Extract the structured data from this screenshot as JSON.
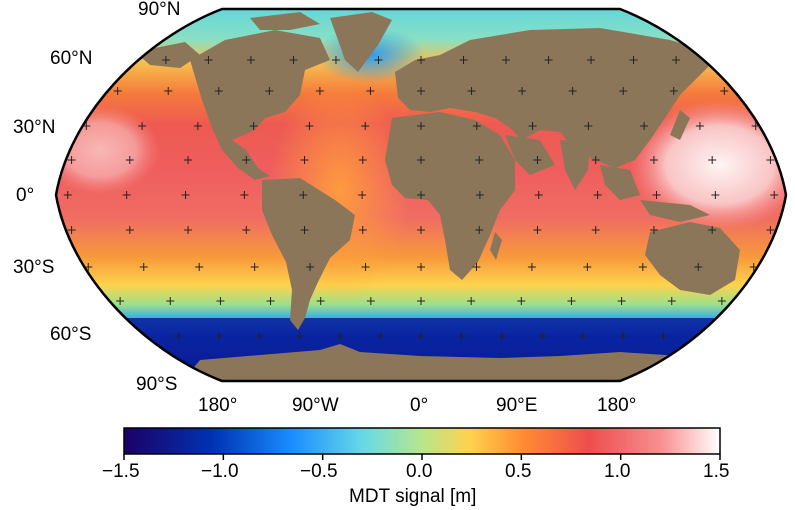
{
  "colors": {
    "land": "#8c7659",
    "background": "#ffffff",
    "outline": "#000000",
    "grid_cross": "#222222"
  },
  "map": {
    "projection": "Robinson",
    "graticule": "plus-markers every 15°",
    "lat_labels": [
      "90°N",
      "60°N",
      "30°N",
      "0°",
      "30°S",
      "60°S",
      "90°S"
    ],
    "lon_labels": [
      "180°",
      "90°W",
      "0°",
      "90°E",
      "180°"
    ]
  },
  "colorbar": {
    "title": "MDT signal [m]",
    "ticks": [
      "−1.5",
      "−1.0",
      "−0.5",
      "0.0",
      "0.5",
      "1.0",
      "1.5"
    ],
    "range": [
      -1.5,
      1.5
    ],
    "colormap": [
      "#1d0066",
      "#0033b3",
      "#1a8cff",
      "#66d9e6",
      "#b8e68c",
      "#ffd24d",
      "#ff8c33",
      "#ee4d4d",
      "#f78f8f",
      "#ffffff"
    ]
  }
}
